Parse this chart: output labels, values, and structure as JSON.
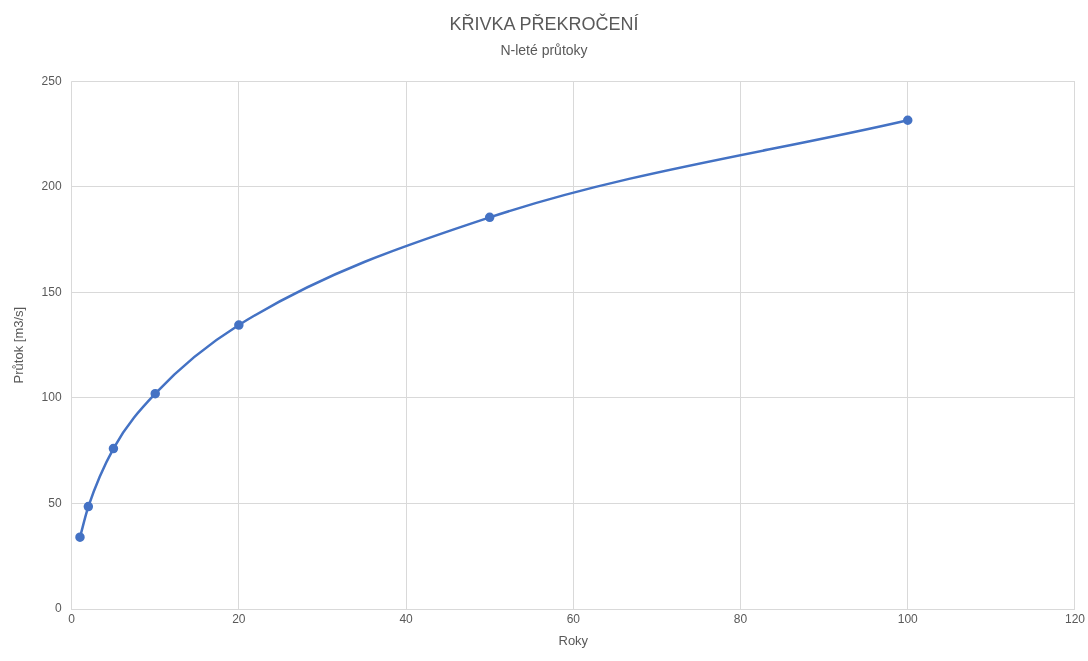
{
  "chart_data": {
    "type": "line",
    "title": "KŘIVKA PŘEKROČENÍ",
    "subtitle": "N-leté průtoky",
    "xlabel": "Roky",
    "ylabel": "Průtok [m3/s]",
    "x": [
      1,
      2,
      5,
      10,
      20,
      50,
      100
    ],
    "series": [
      {
        "color": "#4472c4",
        "values": [
          34,
          48.5,
          76,
          102,
          134.5,
          185.5,
          231.5
        ]
      }
    ],
    "xlim": [
      0,
      120
    ],
    "xticks": [
      0,
      20,
      40,
      60,
      80,
      100,
      120
    ],
    "ylim": [
      0,
      250
    ],
    "yticks": [
      0,
      50,
      100,
      150,
      200,
      250
    ],
    "grid": true,
    "legend": false,
    "marker": "circle",
    "line_style": "solid"
  }
}
